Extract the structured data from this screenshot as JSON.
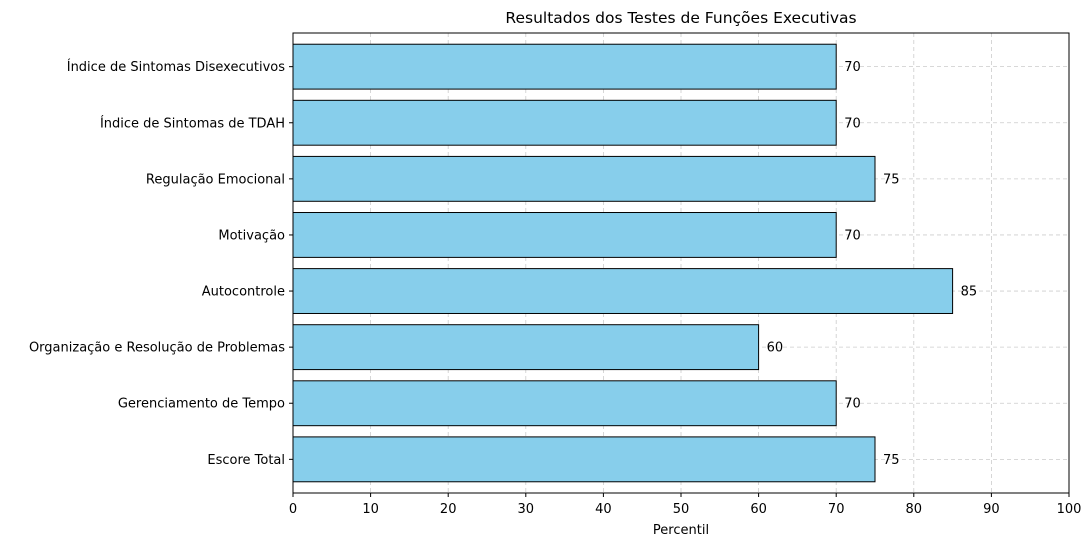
{
  "chart_data": {
    "type": "bar",
    "orientation": "horizontal",
    "title": "Resultados dos Testes de Funções Executivas",
    "xlabel": "Percentil",
    "ylabel": "",
    "categories": [
      "Escore Total",
      "Gerenciamento de Tempo",
      "Organização e Resolução de Problemas",
      "Autocontrole",
      "Motivação",
      "Regulação Emocional",
      "Índice de Sintomas de TDAH",
      "Índice de Sintomas Disexecutivos"
    ],
    "values": [
      75,
      70,
      60,
      85,
      70,
      75,
      70,
      70
    ],
    "xlim": [
      0,
      100
    ],
    "xticks": [
      0,
      10,
      20,
      30,
      40,
      50,
      60,
      70,
      80,
      90,
      100
    ],
    "grid": true,
    "bar_color": "#87ceeb",
    "edge_color": "#000000",
    "grid_color": "#cccccc"
  }
}
